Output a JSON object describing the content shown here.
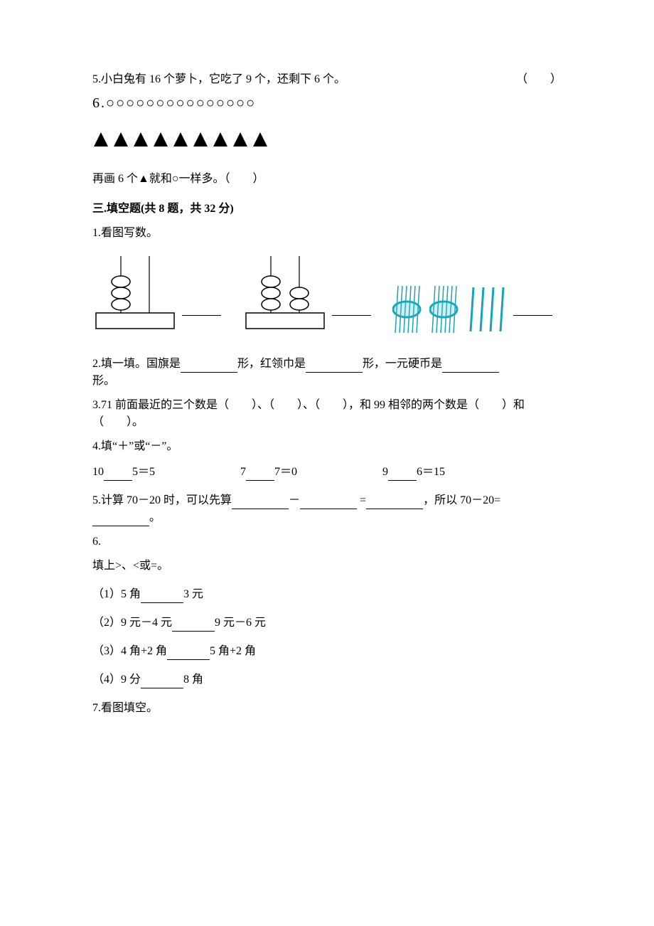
{
  "q5_text": "5.小白兔有 16 个萝卜，它吃了 9 个，还剩下 6 个。",
  "q5_paren": "（　　）",
  "q6_prefix": "6.",
  "circles_count": 15,
  "circles_char": "○",
  "triangles_count": 9,
  "triangle_color": "#000000",
  "q6_line": "再画 6 个▲就和○一样多。（　　）",
  "sec3_title": "三.填空题(共 8 题，共 32 分)",
  "s3_q1": "1.看图写数。",
  "abacus_stroke": "#000000",
  "abacus_fill": "#ffffff",
  "bundle_color": "#35c3d6",
  "s3_q2_a": "2.填一填。国旗是",
  "s3_q2_b": "形，红领巾是",
  "s3_q2_c": "形，一元硬币是",
  "s3_q2_d": "形。",
  "s3_q3": "3.71 前面最近的三个数是（　　）、（　　）、（　　），和 99 相邻的两个数是（　　）和（　　）。",
  "s3_q4_title": "4.填“＋”或“－”。",
  "s3_q4_eq1_a": "10",
  "s3_q4_eq1_b": "5＝5",
  "s3_q4_eq2_a": "7",
  "s3_q4_eq2_b": "7＝0",
  "s3_q4_eq3_a": "9",
  "s3_q4_eq3_b": "6＝15",
  "s3_q5_a": "5.计算 70－20 时，可以先算",
  "s3_q5_b": "－",
  "s3_q5_c": "=",
  "s3_q5_d": "，所以 70－20=",
  "s3_q5_e": "。",
  "s3_q6_num": "6.",
  "s3_q6_instr": "填上>、<或=。",
  "s3_q6_1a": "（1）5 角",
  "s3_q6_1b": "3 元",
  "s3_q6_2a": "（2）9 元－4 元",
  "s3_q6_2b": "9 元－6 元",
  "s3_q6_3a": "（3）4 角+2 角",
  "s3_q6_3b": "5 角+2 角",
  "s3_q6_4a": "（4）9 分",
  "s3_q6_4b": "8 角",
  "s3_q7": "7.看图填空。"
}
